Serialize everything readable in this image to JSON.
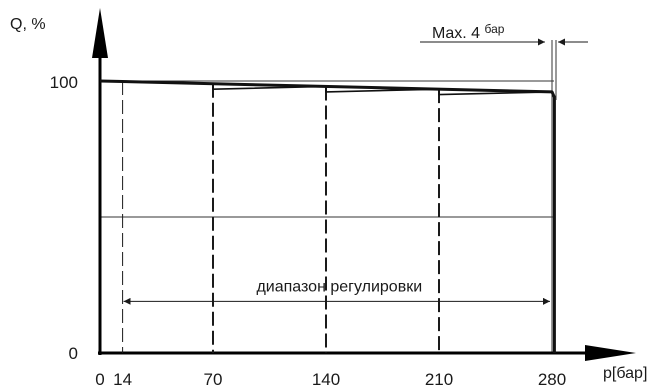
{
  "chart_data": {
    "type": "line",
    "xlabel": "p[бар]",
    "ylabel": "Q, %",
    "xlim": [
      0,
      290
    ],
    "ylim": [
      0,
      100
    ],
    "x_ticks": [
      "0",
      "14",
      "70",
      "140",
      "210",
      "280"
    ],
    "x_tick_values": [
      0,
      14,
      70,
      140,
      210,
      280
    ],
    "y_ticks": [
      "0",
      "100"
    ],
    "y_tick_values": [
      0,
      100
    ],
    "gridlines_y": [
      50,
      100
    ],
    "series": [
      {
        "style": "solid",
        "x": [
          0,
          280,
          281.5,
          281.5
        ],
        "y": [
          100,
          96,
          94,
          0
        ]
      },
      {
        "style": "solid",
        "x": [
          0,
          70,
          70,
          140,
          140,
          210,
          210,
          280
        ],
        "y": [
          100,
          99,
          97,
          98,
          96,
          97,
          95,
          96
        ]
      }
    ],
    "dashed_cutoffs": [
      {
        "x": 14,
        "from": 100
      },
      {
        "x": 70,
        "from": 99
      },
      {
        "x": 140,
        "from": 98
      },
      {
        "x": 210,
        "from": 97
      }
    ],
    "range_annotation": {
      "text": "диапазон регулировки",
      "x_from": 14,
      "x_to": 280,
      "y": 19
    },
    "max_annotation": {
      "text": "Max. 4",
      "unit": "бар"
    }
  }
}
